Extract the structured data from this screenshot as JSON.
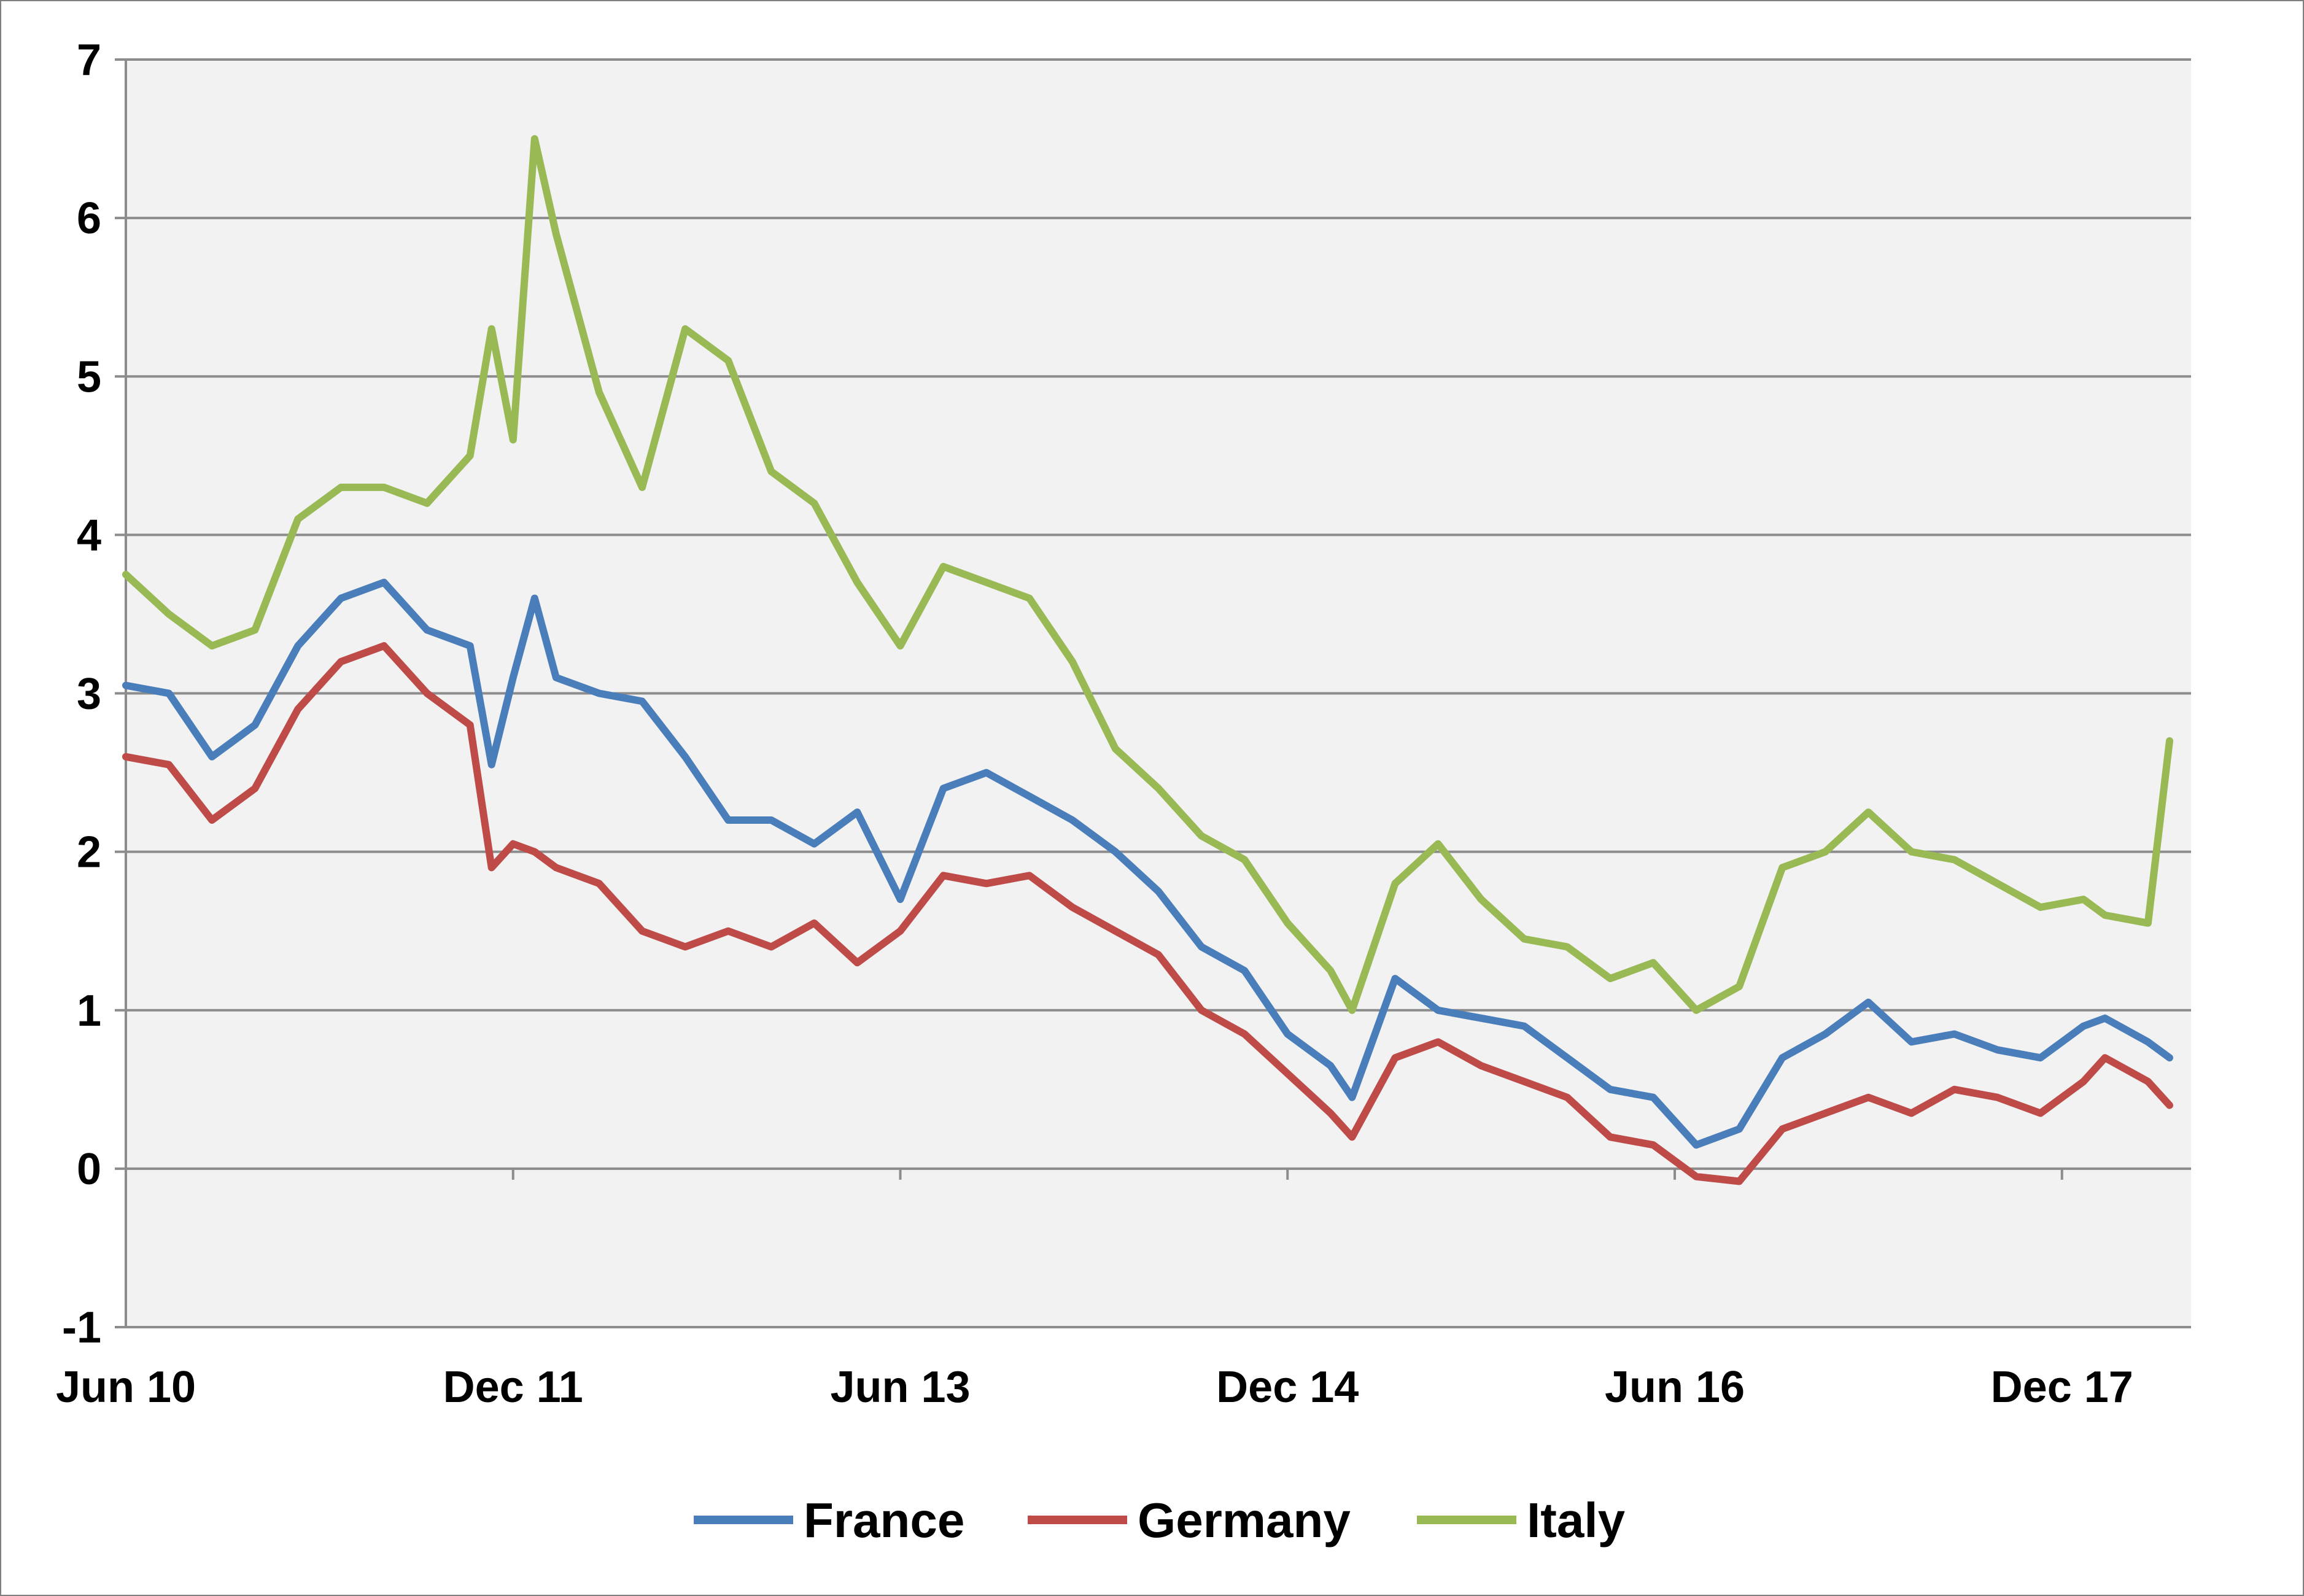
{
  "chart_data": {
    "type": "line",
    "title": "",
    "xlabel": "",
    "ylabel": "",
    "ylim": [
      -1,
      7
    ],
    "xlim": [
      "2010-06",
      "2018-05"
    ],
    "y_ticks": [
      "-1",
      "0",
      "1",
      "2",
      "3",
      "4",
      "5",
      "6",
      "7"
    ],
    "x_ticks": [
      {
        "label": "Jun 10",
        "date": "2010-06"
      },
      {
        "label": "Dec 11",
        "date": "2011-12"
      },
      {
        "label": "Jun 13",
        "date": "2013-06"
      },
      {
        "label": "Dec 14",
        "date": "2014-12"
      },
      {
        "label": "Jun 16",
        "date": "2016-06"
      },
      {
        "label": "Dec 17",
        "date": "2017-12"
      }
    ],
    "grid": true,
    "plot_background": "#f2f2f2",
    "legend": {
      "position": "bottom"
    },
    "series": [
      {
        "name": "France",
        "color": "#4a7ebb",
        "points": [
          [
            "2010-06",
            3.05
          ],
          [
            "2010-08",
            3.0
          ],
          [
            "2010-10",
            2.6
          ],
          [
            "2010-12",
            2.8
          ],
          [
            "2011-02",
            3.3
          ],
          [
            "2011-04",
            3.6
          ],
          [
            "2011-06",
            3.7
          ],
          [
            "2011-08",
            3.4
          ],
          [
            "2011-10",
            3.3
          ],
          [
            "2011-11",
            2.55
          ],
          [
            "2011-12",
            3.1
          ],
          [
            "2012-01",
            3.6
          ],
          [
            "2012-02",
            3.1
          ],
          [
            "2012-04",
            3.0
          ],
          [
            "2012-06",
            2.95
          ],
          [
            "2012-08",
            2.6
          ],
          [
            "2012-10",
            2.2
          ],
          [
            "2012-12",
            2.2
          ],
          [
            "2013-02",
            2.05
          ],
          [
            "2013-04",
            2.25
          ],
          [
            "2013-06",
            1.7
          ],
          [
            "2013-08",
            2.4
          ],
          [
            "2013-10",
            2.5
          ],
          [
            "2013-12",
            2.35
          ],
          [
            "2014-02",
            2.2
          ],
          [
            "2014-04",
            2.0
          ],
          [
            "2014-06",
            1.75
          ],
          [
            "2014-08",
            1.4
          ],
          [
            "2014-10",
            1.25
          ],
          [
            "2014-12",
            0.85
          ],
          [
            "2015-02",
            0.65
          ],
          [
            "2015-03",
            0.45
          ],
          [
            "2015-05",
            1.2
          ],
          [
            "2015-07",
            1.0
          ],
          [
            "2015-09",
            0.95
          ],
          [
            "2015-11",
            0.9
          ],
          [
            "2016-01",
            0.7
          ],
          [
            "2016-03",
            0.5
          ],
          [
            "2016-05",
            0.45
          ],
          [
            "2016-07",
            0.15
          ],
          [
            "2016-09",
            0.25
          ],
          [
            "2016-11",
            0.7
          ],
          [
            "2017-01",
            0.85
          ],
          [
            "2017-03",
            1.05
          ],
          [
            "2017-05",
            0.8
          ],
          [
            "2017-07",
            0.85
          ],
          [
            "2017-09",
            0.75
          ],
          [
            "2017-11",
            0.7
          ],
          [
            "2018-01",
            0.9
          ],
          [
            "2018-02",
            0.95
          ],
          [
            "2018-04",
            0.8
          ],
          [
            "2018-05",
            0.7
          ]
        ]
      },
      {
        "name": "Germany",
        "color": "#be4b48",
        "points": [
          [
            "2010-06",
            2.6
          ],
          [
            "2010-08",
            2.55
          ],
          [
            "2010-10",
            2.2
          ],
          [
            "2010-12",
            2.4
          ],
          [
            "2011-02",
            2.9
          ],
          [
            "2011-04",
            3.2
          ],
          [
            "2011-06",
            3.3
          ],
          [
            "2011-08",
            3.0
          ],
          [
            "2011-10",
            2.8
          ],
          [
            "2011-11",
            1.9
          ],
          [
            "2011-12",
            2.05
          ],
          [
            "2012-01",
            2.0
          ],
          [
            "2012-02",
            1.9
          ],
          [
            "2012-04",
            1.8
          ],
          [
            "2012-06",
            1.5
          ],
          [
            "2012-08",
            1.4
          ],
          [
            "2012-10",
            1.5
          ],
          [
            "2012-12",
            1.4
          ],
          [
            "2013-02",
            1.55
          ],
          [
            "2013-04",
            1.3
          ],
          [
            "2013-06",
            1.5
          ],
          [
            "2013-08",
            1.85
          ],
          [
            "2013-10",
            1.8
          ],
          [
            "2013-12",
            1.85
          ],
          [
            "2014-02",
            1.65
          ],
          [
            "2014-04",
            1.5
          ],
          [
            "2014-06",
            1.35
          ],
          [
            "2014-08",
            1.0
          ],
          [
            "2014-10",
            0.85
          ],
          [
            "2014-12",
            0.6
          ],
          [
            "2015-02",
            0.35
          ],
          [
            "2015-03",
            0.2
          ],
          [
            "2015-05",
            0.7
          ],
          [
            "2015-07",
            0.8
          ],
          [
            "2015-09",
            0.65
          ],
          [
            "2015-11",
            0.55
          ],
          [
            "2016-01",
            0.45
          ],
          [
            "2016-03",
            0.2
          ],
          [
            "2016-05",
            0.15
          ],
          [
            "2016-07",
            -0.05
          ],
          [
            "2016-09",
            -0.08
          ],
          [
            "2016-11",
            0.25
          ],
          [
            "2017-01",
            0.35
          ],
          [
            "2017-03",
            0.45
          ],
          [
            "2017-05",
            0.35
          ],
          [
            "2017-07",
            0.5
          ],
          [
            "2017-09",
            0.45
          ],
          [
            "2017-11",
            0.35
          ],
          [
            "2018-01",
            0.55
          ],
          [
            "2018-02",
            0.7
          ],
          [
            "2018-04",
            0.55
          ],
          [
            "2018-05",
            0.4
          ]
        ]
      },
      {
        "name": "Italy",
        "color": "#98b954",
        "points": [
          [
            "2010-06",
            3.75
          ],
          [
            "2010-08",
            3.5
          ],
          [
            "2010-10",
            3.3
          ],
          [
            "2010-12",
            3.4
          ],
          [
            "2011-02",
            4.1
          ],
          [
            "2011-04",
            4.3
          ],
          [
            "2011-06",
            4.3
          ],
          [
            "2011-08",
            4.2
          ],
          [
            "2011-10",
            4.5
          ],
          [
            "2011-11",
            5.3
          ],
          [
            "2011-12",
            4.6
          ],
          [
            "2012-01",
            6.5
          ],
          [
            "2012-02",
            5.9
          ],
          [
            "2012-04",
            4.9
          ],
          [
            "2012-06",
            4.3
          ],
          [
            "2012-08",
            5.3
          ],
          [
            "2012-10",
            5.1
          ],
          [
            "2012-12",
            4.4
          ],
          [
            "2013-02",
            4.2
          ],
          [
            "2013-04",
            3.7
          ],
          [
            "2013-06",
            3.3
          ],
          [
            "2013-08",
            3.8
          ],
          [
            "2013-10",
            3.7
          ],
          [
            "2013-12",
            3.6
          ],
          [
            "2014-02",
            3.2
          ],
          [
            "2014-04",
            2.65
          ],
          [
            "2014-06",
            2.4
          ],
          [
            "2014-08",
            2.1
          ],
          [
            "2014-10",
            1.95
          ],
          [
            "2014-12",
            1.55
          ],
          [
            "2015-02",
            1.25
          ],
          [
            "2015-03",
            1.0
          ],
          [
            "2015-05",
            1.8
          ],
          [
            "2015-07",
            2.05
          ],
          [
            "2015-09",
            1.7
          ],
          [
            "2015-11",
            1.45
          ],
          [
            "2016-01",
            1.4
          ],
          [
            "2016-03",
            1.2
          ],
          [
            "2016-05",
            1.3
          ],
          [
            "2016-07",
            1.0
          ],
          [
            "2016-09",
            1.15
          ],
          [
            "2016-11",
            1.9
          ],
          [
            "2017-01",
            2.0
          ],
          [
            "2017-03",
            2.25
          ],
          [
            "2017-05",
            2.0
          ],
          [
            "2017-07",
            1.95
          ],
          [
            "2017-09",
            1.8
          ],
          [
            "2017-11",
            1.65
          ],
          [
            "2018-01",
            1.7
          ],
          [
            "2018-02",
            1.6
          ],
          [
            "2018-04",
            1.55
          ],
          [
            "2018-05",
            2.7
          ]
        ]
      }
    ]
  }
}
